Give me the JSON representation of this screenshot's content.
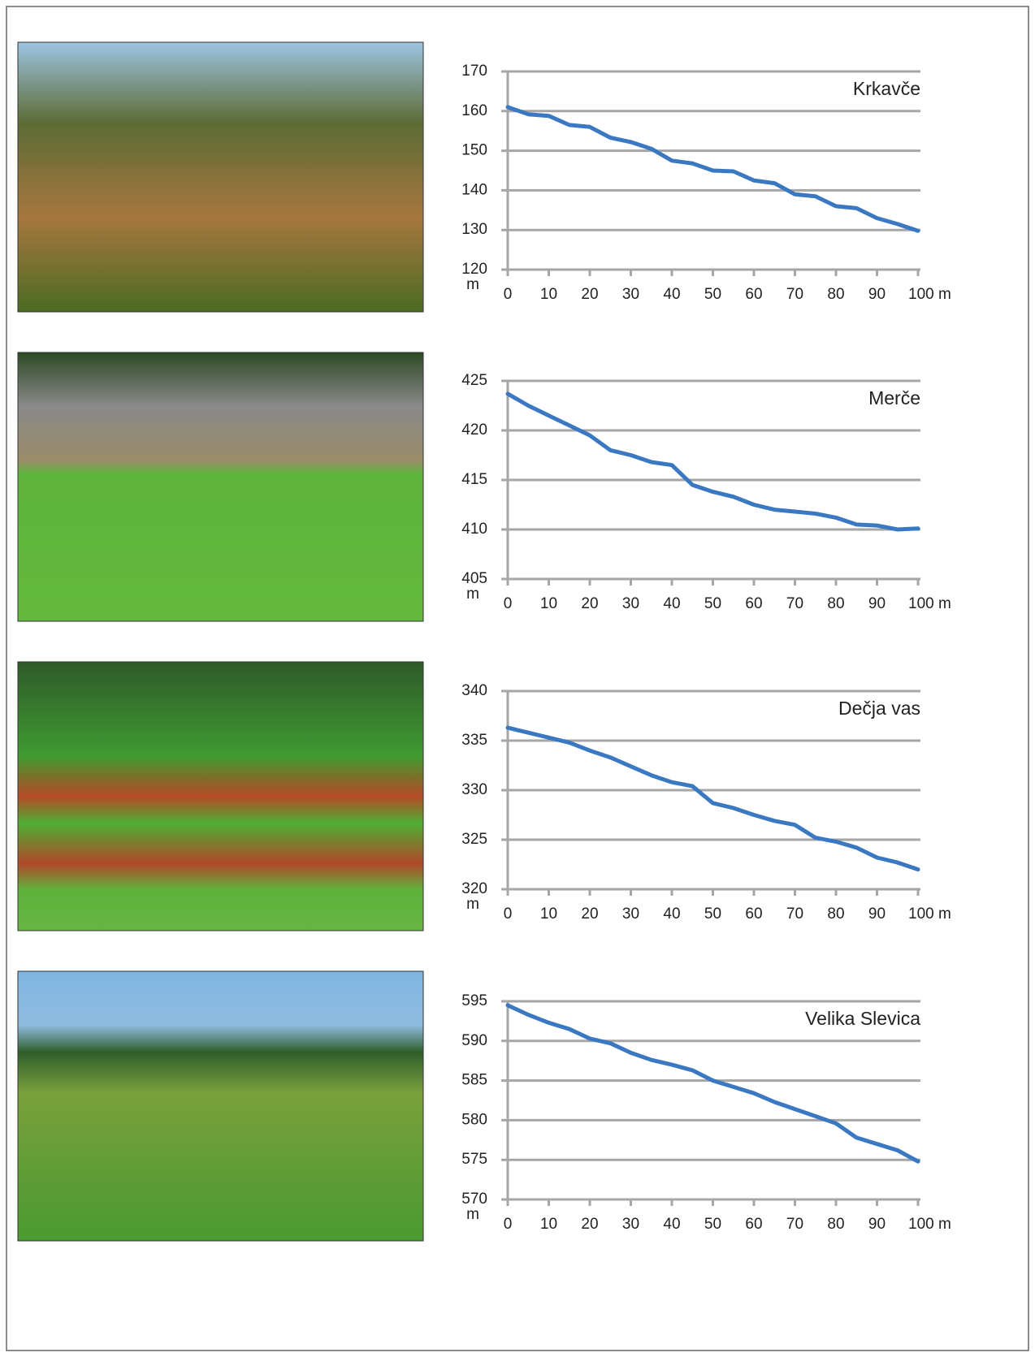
{
  "chart_data": [
    {
      "type": "line",
      "title": "Krkavče",
      "y_label": "m",
      "color": "#3a78c2",
      "grid": true,
      "x": [
        0,
        5,
        10,
        15,
        20,
        25,
        30,
        35,
        40,
        45,
        50,
        55,
        60,
        65,
        70,
        75,
        80,
        85,
        90,
        95,
        100
      ],
      "values": [
        161,
        159.2,
        158.8,
        156.5,
        156,
        153.3,
        152.2,
        150.5,
        147.5,
        146.8,
        145,
        144.8,
        142.5,
        141.8,
        139,
        138.5,
        136,
        135.5,
        133,
        131.5,
        129.8
      ],
      "xlim": [
        0,
        100
      ],
      "ylim": [
        120,
        170
      ],
      "xticks": [
        0,
        10,
        20,
        30,
        40,
        50,
        60,
        70,
        80,
        90,
        {
          "value": 100,
          "label": "100 m"
        }
      ],
      "yticks": [
        120,
        130,
        140,
        150,
        160,
        170
      ]
    },
    {
      "type": "line",
      "title": "Merče",
      "y_label": "m",
      "color": "#3a78c2",
      "grid": true,
      "x": [
        0,
        5,
        10,
        15,
        20,
        25,
        30,
        35,
        40,
        45,
        50,
        55,
        60,
        65,
        70,
        75,
        80,
        85,
        90,
        95,
        100
      ],
      "values": [
        423.7,
        422.5,
        421.5,
        420.5,
        419.5,
        418,
        417.5,
        416.8,
        416.5,
        414.5,
        413.8,
        413.3,
        412.5,
        412,
        411.8,
        411.6,
        411.2,
        410.5,
        410.4,
        410,
        410.1
      ],
      "xlim": [
        0,
        100
      ],
      "ylim": [
        405,
        425
      ],
      "xticks": [
        0,
        10,
        20,
        30,
        40,
        50,
        60,
        70,
        80,
        90,
        {
          "value": 100,
          "label": "100 m"
        }
      ],
      "yticks": [
        405,
        410,
        415,
        420,
        425
      ]
    },
    {
      "type": "line",
      "title": "Dečja vas",
      "y_label": "m",
      "color": "#3a78c2",
      "grid": true,
      "x": [
        0,
        5,
        10,
        15,
        20,
        25,
        30,
        35,
        40,
        45,
        50,
        55,
        60,
        65,
        70,
        75,
        80,
        85,
        90,
        95,
        100
      ],
      "values": [
        336.3,
        335.8,
        335.3,
        334.8,
        334,
        333.3,
        332.4,
        331.5,
        330.8,
        330.4,
        328.7,
        328.2,
        327.5,
        326.9,
        326.5,
        325.2,
        324.8,
        324.2,
        323.2,
        322.7,
        322
      ],
      "xlim": [
        0,
        100
      ],
      "ylim": [
        320,
        340
      ],
      "xticks": [
        0,
        10,
        20,
        30,
        40,
        50,
        60,
        70,
        80,
        90,
        {
          "value": 100,
          "label": "100 m"
        }
      ],
      "yticks": [
        320,
        325,
        330,
        335,
        340
      ]
    },
    {
      "type": "line",
      "title": "Velika Slevica",
      "y_label": "m",
      "color": "#3a78c2",
      "grid": true,
      "x": [
        0,
        5,
        10,
        15,
        20,
        25,
        30,
        35,
        40,
        45,
        50,
        55,
        60,
        65,
        70,
        75,
        80,
        85,
        90,
        95,
        100
      ],
      "values": [
        594.5,
        593.3,
        592.3,
        591.5,
        590.3,
        589.7,
        588.5,
        587.6,
        587,
        586.3,
        585,
        584.2,
        583.4,
        582.3,
        581.4,
        580.5,
        579.6,
        577.8,
        577,
        576.2,
        574.8
      ],
      "xlim": [
        0,
        100
      ],
      "ylim": [
        570,
        595
      ],
      "xticks": [
        0,
        10,
        20,
        30,
        40,
        50,
        60,
        70,
        80,
        90,
        {
          "value": 100,
          "label": "100 m"
        }
      ],
      "yticks": [
        570,
        575,
        580,
        585,
        590,
        595
      ]
    }
  ]
}
